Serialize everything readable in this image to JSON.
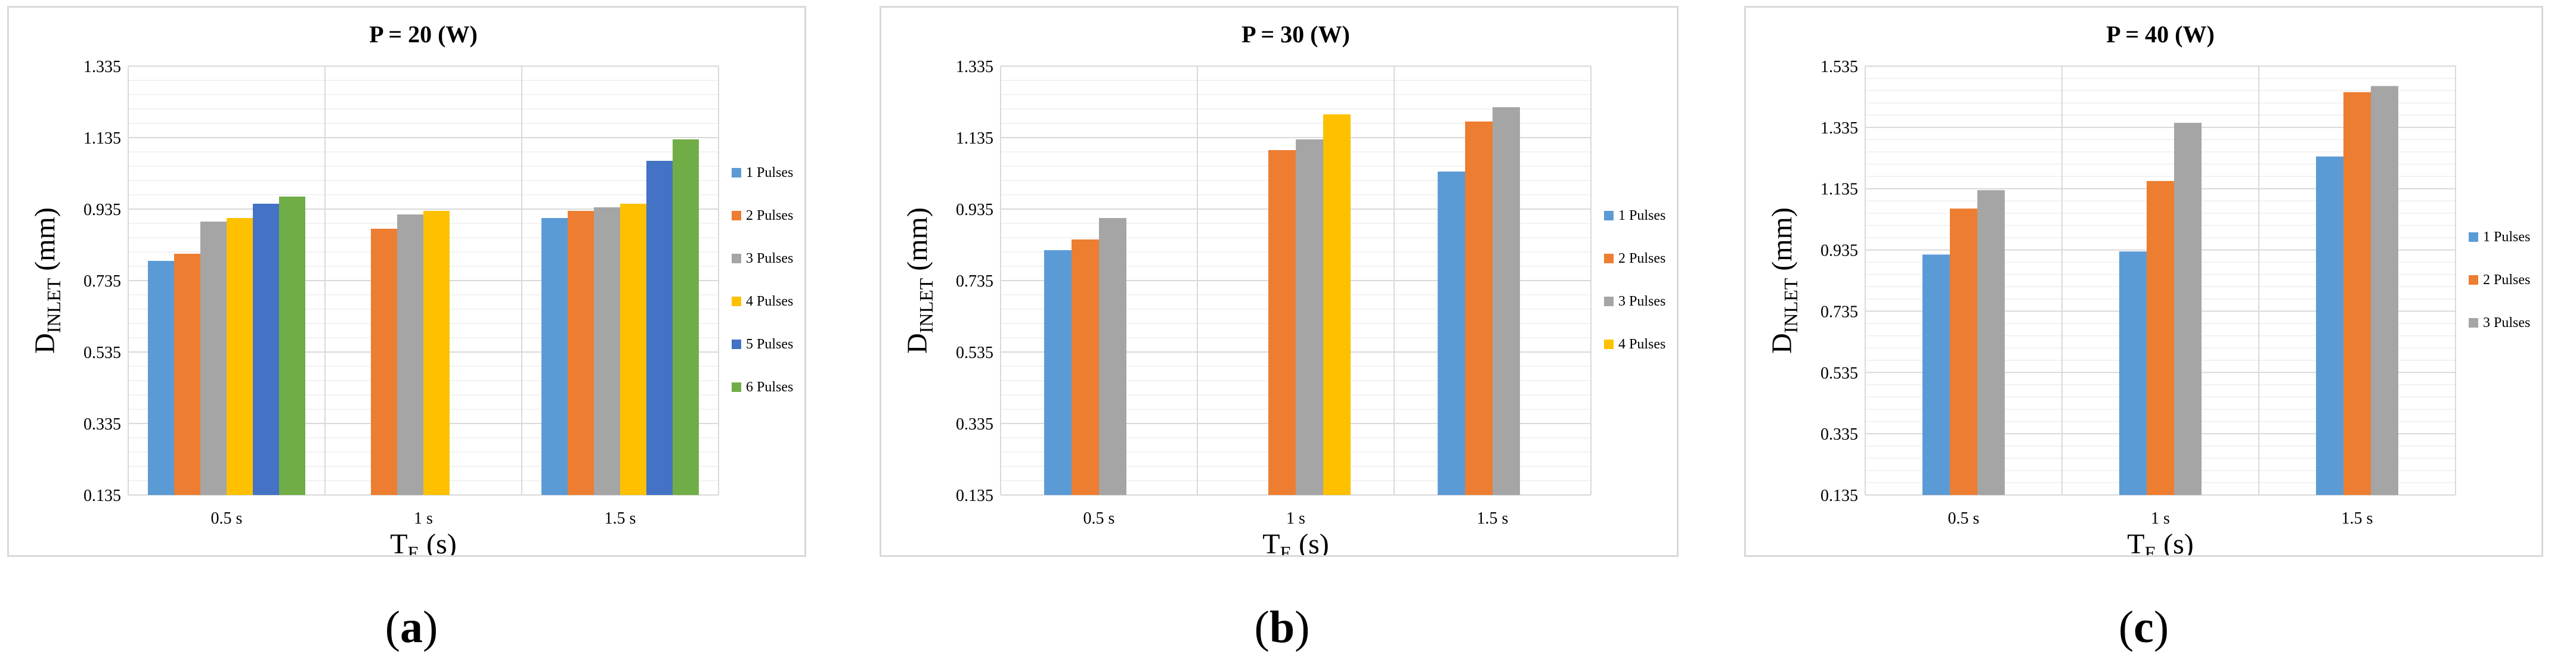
{
  "colors": {
    "s1": "#5b9bd5",
    "s2": "#ed7d31",
    "s3": "#a5a5a5",
    "s4": "#ffc000",
    "s5": "#4472c4",
    "s6": "#70ad47",
    "grid": "#d9d9d9",
    "text": "#000000"
  },
  "captions": {
    "a": "a",
    "b": "b",
    "c": "c"
  },
  "chart_data": [
    {
      "type": "bar",
      "title": "P = 20 (W)",
      "xlabel_main": "T",
      "xlabel_sub": "E",
      "xlabel_unit": " (s)",
      "ylabel_main": "D",
      "ylabel_sub": "INLET",
      "ylabel_unit": " (mm)",
      "categories": [
        "0.5 s",
        "1 s",
        "1.5 s"
      ],
      "ylim": [
        0.135,
        1.335
      ],
      "yticks": [
        "0.135",
        "0.335",
        "0.535",
        "0.735",
        "0.935",
        "1.135",
        "1.335"
      ],
      "series": [
        {
          "name": "1 Pulses",
          "color_key": "s1",
          "values": [
            0.79,
            null,
            0.91
          ]
        },
        {
          "name": "2 Pulses",
          "color_key": "s2",
          "values": [
            0.81,
            0.88,
            0.93
          ]
        },
        {
          "name": "3 Pulses",
          "color_key": "s3",
          "values": [
            0.9,
            0.92,
            0.94
          ]
        },
        {
          "name": "4 Pulses",
          "color_key": "s4",
          "values": [
            0.91,
            0.93,
            0.95
          ]
        },
        {
          "name": "5 Pulses",
          "color_key": "s5",
          "values": [
            0.95,
            null,
            1.07
          ]
        },
        {
          "name": "6 Pulses",
          "color_key": "s6",
          "values": [
            0.97,
            null,
            1.13
          ]
        }
      ]
    },
    {
      "type": "bar",
      "title": "P = 30 (W)",
      "xlabel_main": "T",
      "xlabel_sub": "E",
      "xlabel_unit": " (s)",
      "ylabel_main": "D",
      "ylabel_sub": "INLET",
      "ylabel_unit": " (mm)",
      "categories": [
        "0.5 s",
        "1 s",
        "1.5 s"
      ],
      "ylim": [
        0.135,
        1.335
      ],
      "yticks": [
        "0.135",
        "0.335",
        "0.535",
        "0.735",
        "0.935",
        "1.135",
        "1.335"
      ],
      "series": [
        {
          "name": "1 Pulses",
          "color_key": "s1",
          "values": [
            0.82,
            null,
            1.04
          ]
        },
        {
          "name": "2 Pulses",
          "color_key": "s2",
          "values": [
            0.85,
            1.1,
            1.18
          ]
        },
        {
          "name": "3 Pulses",
          "color_key": "s3",
          "values": [
            0.91,
            1.13,
            1.22
          ]
        },
        {
          "name": "4 Pulses",
          "color_key": "s4",
          "values": [
            null,
            1.2,
            null
          ]
        }
      ]
    },
    {
      "type": "bar",
      "title": "P = 40 (W)",
      "xlabel_main": "T",
      "xlabel_sub": "E",
      "xlabel_unit": " (s)",
      "ylabel_main": "D",
      "ylabel_sub": "INLET",
      "ylabel_unit": " (mm)",
      "categories": [
        "0.5 s",
        "1 s",
        "1.5 s"
      ],
      "ylim": [
        0.135,
        1.535
      ],
      "yticks": [
        "0.135",
        "0.335",
        "0.535",
        "0.735",
        "0.935",
        "1.135",
        "1.335",
        "1.535"
      ],
      "series": [
        {
          "name": "1 Pulses",
          "color_key": "s1",
          "values": [
            0.92,
            0.93,
            1.24
          ]
        },
        {
          "name": "2 Pulses",
          "color_key": "s2",
          "values": [
            1.07,
            1.16,
            1.45
          ]
        },
        {
          "name": "3 Pulses",
          "color_key": "s3",
          "values": [
            1.13,
            1.35,
            1.47
          ]
        }
      ]
    }
  ]
}
